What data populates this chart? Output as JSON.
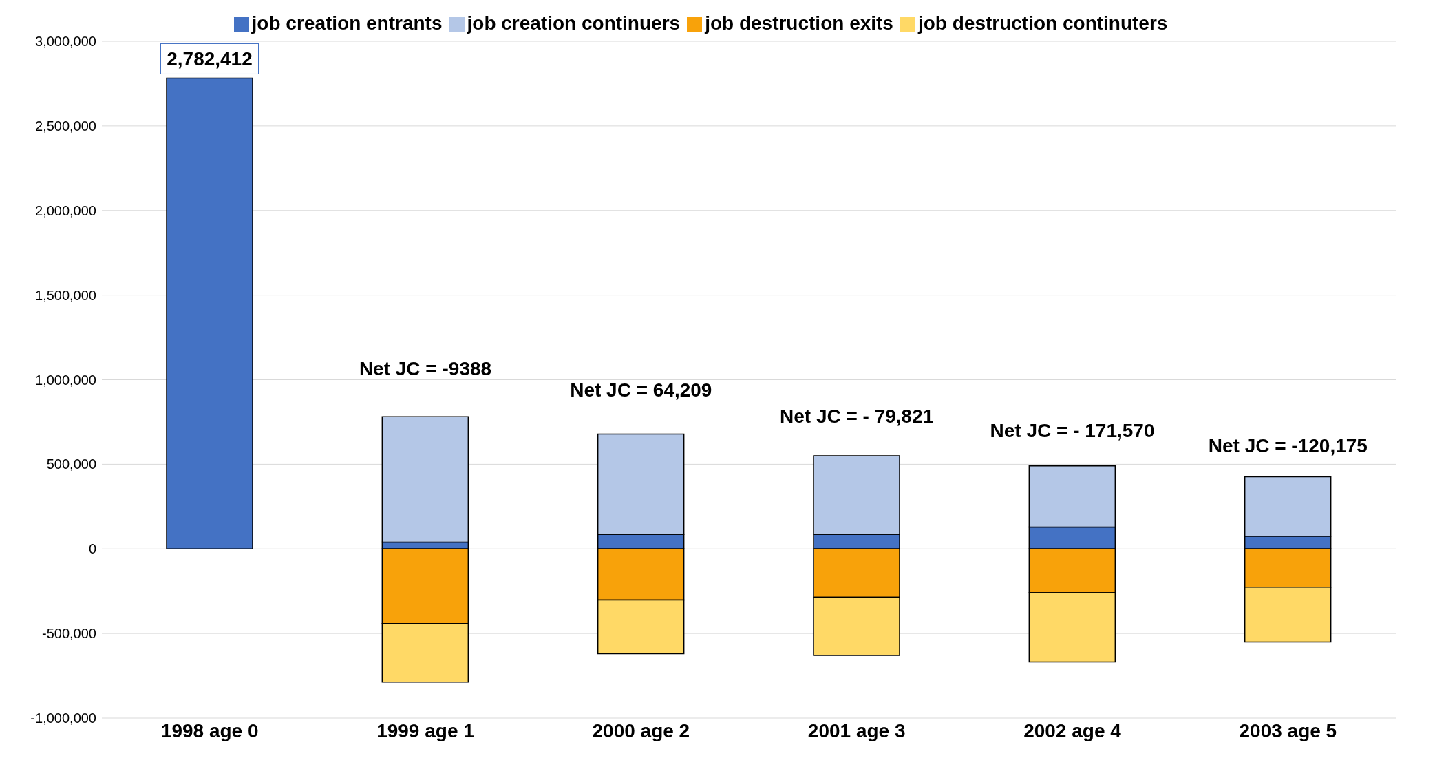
{
  "chart_data": {
    "type": "bar",
    "stacked": true,
    "categories": [
      "1998 age 0",
      "1999 age 1",
      "2000 age 2",
      "2001 age 3",
      "2002 age 4",
      "2003 age 5"
    ],
    "series": [
      {
        "name": "job creation entrants",
        "color": "#4472c4",
        "values": [
          2782412,
          40000,
          86000,
          86000,
          129000,
          75000
        ],
        "value_labels": [
          "2,782,412",
          null,
          null,
          null,
          null,
          null
        ]
      },
      {
        "name": "job creation continuers",
        "color": "#b4c7e7",
        "values": [
          null,
          741000,
          593000,
          464000,
          361000,
          351000
        ]
      },
      {
        "name": "job destruction exits",
        "color": "#f8a20a",
        "values": [
          null,
          -442000,
          -302000,
          -286000,
          -259000,
          -226000
        ]
      },
      {
        "name": "job destruction continuters",
        "color": "#ffd966",
        "values": [
          null,
          -345000,
          -318000,
          -344000,
          -409000,
          -324000
        ]
      }
    ],
    "ylim": [
      -1000000,
      3000000
    ],
    "yticks": [
      {
        "value": -1000000,
        "label": "-1,000,000"
      },
      {
        "value": -500000,
        "label": "-500,000"
      },
      {
        "value": 0,
        "label": "0"
      },
      {
        "value": 500000,
        "label": "500,000"
      },
      {
        "value": 1000000,
        "label": "1,000,000"
      },
      {
        "value": 1500000,
        "label": "1,500,000"
      },
      {
        "value": 2000000,
        "label": "2,000,000"
      },
      {
        "value": 2500000,
        "label": "2,500,000"
      },
      {
        "value": 3000000,
        "label": "3,000,000"
      }
    ],
    "grid": "y",
    "legend": "top",
    "annotations": [
      "Net JC = -9388",
      "Net JC = 64,209",
      "Net JC = - 79,821",
      "Net JC = - 171,570",
      "Net JC = -120,175"
    ]
  }
}
